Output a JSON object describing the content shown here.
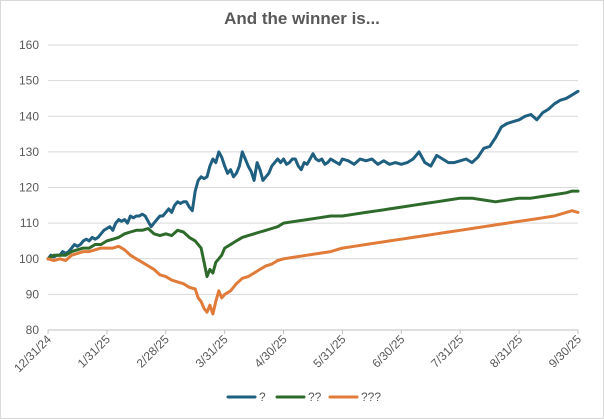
{
  "chart_data": {
    "type": "line",
    "title": "And the winner is...",
    "xlabel": "",
    "ylabel": "",
    "ylim": [
      80,
      160
    ],
    "yticks": [
      80,
      90,
      100,
      110,
      120,
      130,
      140,
      150,
      160
    ],
    "xticks": [
      "12/31/24",
      "1/31/25",
      "2/28/25",
      "3/31/25",
      "4/30/25",
      "5/31/25",
      "6/30/25",
      "7/31/25",
      "8/31/25",
      "9/30/25"
    ],
    "grid": true,
    "legend_position": "bottom",
    "series": [
      {
        "name": "?",
        "color": "#1f5f7f",
        "x": [
          0,
          0.05,
          0.1,
          0.15,
          0.2,
          0.25,
          0.3,
          0.35,
          0.4,
          0.45,
          0.5,
          0.55,
          0.6,
          0.65,
          0.7,
          0.75,
          0.8,
          0.85,
          0.9,
          0.95,
          1.0,
          1.05,
          1.1,
          1.15,
          1.2,
          1.25,
          1.3,
          1.35,
          1.4,
          1.45,
          1.5,
          1.55,
          1.6,
          1.65,
          1.7,
          1.75,
          1.8,
          1.85,
          1.9,
          1.95,
          2.0,
          2.05,
          2.1,
          2.15,
          2.2,
          2.25,
          2.3,
          2.35,
          2.4,
          2.45,
          2.5,
          2.55,
          2.6,
          2.65,
          2.7,
          2.75,
          2.8,
          2.85,
          2.9,
          2.95,
          3.0,
          3.05,
          3.1,
          3.15,
          3.2,
          3.25,
          3.3,
          3.35,
          3.4,
          3.45,
          3.5,
          3.55,
          3.6,
          3.65,
          3.7,
          3.75,
          3.8,
          3.85,
          3.9,
          3.95,
          4.0,
          4.05,
          4.1,
          4.15,
          4.2,
          4.25,
          4.3,
          4.35,
          4.4,
          4.45,
          4.5,
          4.55,
          4.6,
          4.65,
          4.7,
          4.75,
          4.8,
          4.85,
          4.9,
          4.95,
          5.0,
          5.1,
          5.2,
          5.3,
          5.4,
          5.5,
          5.6,
          5.7,
          5.8,
          5.9,
          6.0,
          6.1,
          6.2,
          6.3,
          6.4,
          6.5,
          6.6,
          6.7,
          6.8,
          6.9,
          7.0,
          7.1,
          7.2,
          7.3,
          7.4,
          7.5,
          7.6,
          7.7,
          7.8,
          7.9,
          8.0,
          8.1,
          8.2,
          8.3,
          8.4,
          8.5,
          8.6,
          8.7,
          8.8,
          8.9,
          9.0
        ],
        "values": [
          100,
          101,
          100.5,
          101,
          101,
          102,
          101.5,
          102,
          103,
          104,
          103.5,
          104,
          105,
          105.5,
          105,
          106,
          105.5,
          106,
          107,
          108,
          108.5,
          109,
          108,
          110,
          111,
          110.5,
          111,
          110,
          112,
          111.5,
          112,
          112,
          112.5,
          112,
          110.5,
          109,
          110,
          111,
          112,
          112,
          113,
          114,
          113,
          115,
          116,
          115.5,
          116,
          116,
          114.5,
          113.5,
          119,
          122,
          123,
          122.5,
          123,
          126,
          128,
          127,
          130,
          128.5,
          126,
          124,
          125,
          123,
          124,
          126,
          130,
          128,
          126,
          124.5,
          122,
          127,
          125,
          122,
          123,
          124,
          126,
          127,
          128,
          127,
          128,
          126.5,
          127,
          128,
          128,
          126,
          125,
          127,
          126.5,
          128,
          129.5,
          128,
          127.5,
          128,
          126.5,
          127,
          128,
          127.5,
          127,
          126.5,
          128,
          127.5,
          126.5,
          128,
          127.5,
          128,
          126.5,
          127.5,
          126.5,
          127,
          126.5,
          127,
          128,
          130,
          127,
          126,
          129,
          128,
          127,
          127,
          127.5,
          128,
          127,
          128.5,
          131,
          131.5,
          134,
          137,
          138,
          138.5,
          139,
          140,
          140.5,
          139,
          141,
          142,
          143.5,
          144.5,
          145,
          146,
          147
        ]
      },
      {
        "name": "??",
        "color": "#2e6b2b",
        "x": [
          0,
          0.1,
          0.2,
          0.3,
          0.4,
          0.5,
          0.6,
          0.7,
          0.8,
          0.9,
          1.0,
          1.1,
          1.2,
          1.3,
          1.4,
          1.5,
          1.6,
          1.7,
          1.8,
          1.9,
          2.0,
          2.1,
          2.2,
          2.3,
          2.4,
          2.5,
          2.6,
          2.65,
          2.7,
          2.75,
          2.8,
          2.85,
          2.9,
          2.95,
          3.0,
          3.1,
          3.2,
          3.3,
          3.4,
          3.5,
          3.6,
          3.7,
          3.8,
          3.9,
          4.0,
          4.2,
          4.4,
          4.6,
          4.8,
          5.0,
          5.2,
          5.4,
          5.6,
          5.8,
          6.0,
          6.2,
          6.4,
          6.6,
          6.8,
          7.0,
          7.2,
          7.4,
          7.6,
          7.8,
          8.0,
          8.2,
          8.4,
          8.6,
          8.8,
          8.9,
          9.0
        ],
        "values": [
          100,
          101,
          101,
          101,
          102,
          102.5,
          103,
          103,
          104,
          104,
          105,
          105.5,
          106,
          107,
          107.5,
          108,
          108,
          108.5,
          107,
          106.5,
          107,
          106.5,
          108,
          107.5,
          106,
          105,
          103,
          99,
          95,
          97,
          96,
          99,
          100,
          101,
          103,
          104,
          105,
          106,
          106.5,
          107,
          107.5,
          108,
          108.5,
          109,
          110,
          110.5,
          111,
          111.5,
          112,
          112,
          112.5,
          113,
          113.5,
          114,
          114.5,
          115,
          115.5,
          116,
          116.5,
          117,
          117,
          116.5,
          116,
          116.5,
          117,
          117,
          117.5,
          118,
          118.5,
          119,
          119
        ]
      },
      {
        "name": "???",
        "color": "#e07b39",
        "x": [
          0,
          0.1,
          0.2,
          0.3,
          0.4,
          0.5,
          0.6,
          0.7,
          0.8,
          0.9,
          1.0,
          1.1,
          1.2,
          1.3,
          1.4,
          1.5,
          1.6,
          1.7,
          1.8,
          1.9,
          2.0,
          2.1,
          2.2,
          2.3,
          2.4,
          2.5,
          2.55,
          2.6,
          2.65,
          2.7,
          2.75,
          2.8,
          2.85,
          2.9,
          2.95,
          3.0,
          3.1,
          3.2,
          3.3,
          3.4,
          3.5,
          3.6,
          3.7,
          3.8,
          3.9,
          4.0,
          4.2,
          4.4,
          4.6,
          4.8,
          5.0,
          5.2,
          5.4,
          5.6,
          5.8,
          6.0,
          6.2,
          6.4,
          6.6,
          6.8,
          7.0,
          7.2,
          7.4,
          7.6,
          7.8,
          8.0,
          8.2,
          8.4,
          8.6,
          8.8,
          8.9,
          9.0
        ],
        "values": [
          100,
          99.5,
          100,
          99.5,
          101,
          101.5,
          102,
          102,
          102.5,
          103,
          103,
          103,
          103.5,
          102.5,
          101,
          100,
          99,
          98,
          97,
          95.5,
          95,
          94,
          93.5,
          93,
          92,
          91.5,
          89,
          88,
          86,
          85,
          87,
          84.5,
          88,
          91,
          89,
          90,
          91,
          93,
          94.5,
          95,
          96,
          97,
          98,
          98.5,
          99.5,
          100,
          100.5,
          101,
          101.5,
          102,
          103,
          103.5,
          104,
          104.5,
          105,
          105.5,
          106,
          106.5,
          107,
          107.5,
          108,
          108.5,
          109,
          109.5,
          110,
          110.5,
          111,
          111.5,
          112,
          113,
          113.5,
          113
        ]
      }
    ]
  }
}
